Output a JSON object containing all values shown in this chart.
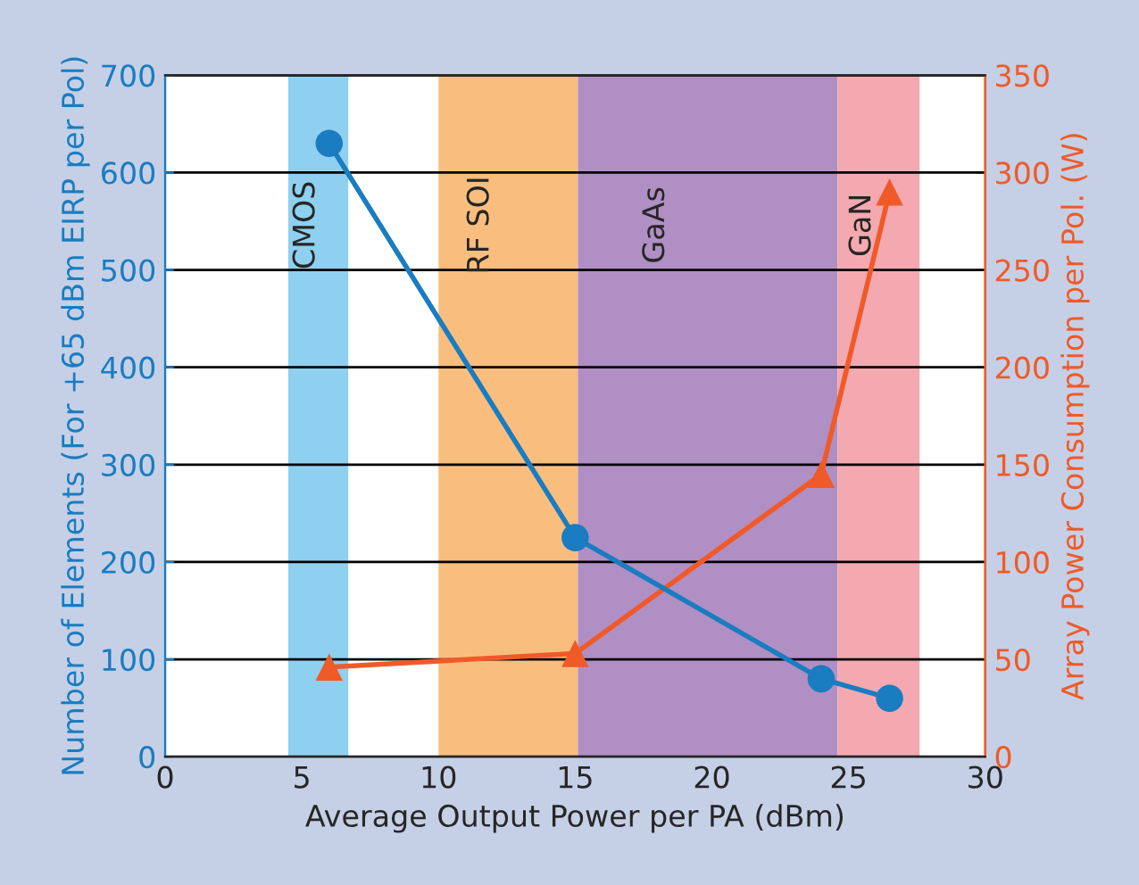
{
  "chart_data": {
    "type": "line",
    "xlabel": "Average Output Power per PA (dBm)",
    "ylabel": "Number of Elements (For +65 dBm EIRP per Pol)",
    "y2label": "Array Power Consumption per Pol. (W)",
    "xlim": [
      0,
      30
    ],
    "xticks": [
      0,
      5,
      10,
      15,
      20,
      25,
      30
    ],
    "ylim": [
      0,
      700
    ],
    "yticks": [
      0,
      100,
      200,
      300,
      400,
      500,
      600,
      700
    ],
    "y2lim": [
      0,
      350
    ],
    "y2ticks": [
      0,
      50,
      100,
      150,
      200,
      250,
      300,
      350
    ],
    "grid": "y",
    "line_style": "solid",
    "series": [
      {
        "color": "#1a7cc1",
        "marker": "circle",
        "x": [
          6,
          15,
          24,
          26.5
        ],
        "values": [
          630,
          225,
          80,
          60
        ]
      },
      {
        "color": "#f05a28",
        "marker": "triangle",
        "axis": "y2",
        "x": [
          6,
          15,
          24,
          26.5
        ],
        "values": [
          46,
          53,
          145,
          290
        ]
      }
    ],
    "bands": [
      {
        "axis": "x",
        "from": 4.5,
        "to": 6.7,
        "label": "CMOS",
        "color": "#8fd0f0"
      },
      {
        "axis": "x",
        "from": 10,
        "to": 15.1,
        "label": "RF SOI",
        "color": "#f9be7e"
      },
      {
        "axis": "x",
        "from": 15.1,
        "to": 24.6,
        "label": "GaAs",
        "color": "#b08fc4"
      },
      {
        "axis": "x",
        "from": 24.6,
        "to": 27.6,
        "label": "GaN",
        "color": "#f4a9b0"
      }
    ]
  }
}
